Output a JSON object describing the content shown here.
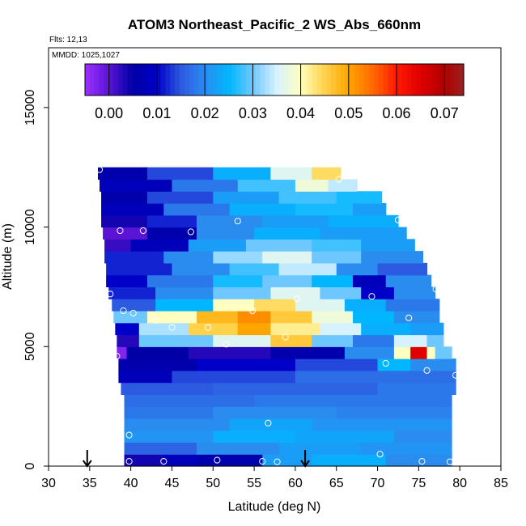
{
  "chart_data": {
    "type": "heatmap",
    "title": "ATOM3 Northeast_Pacific_2 WS_Abs_660nm",
    "flights_label": "Flts: 12,13",
    "mmdd_label": "MMDD: 1025,1027",
    "xlabel": "Latitude (deg N)",
    "ylabel": "Altitude (m)",
    "xlim": [
      30,
      85
    ],
    "ylim": [
      0,
      17500
    ],
    "xticks": [
      "30",
      "35",
      "40",
      "45",
      "50",
      "55",
      "60",
      "65",
      "70",
      "75",
      "80",
      "85"
    ],
    "yticks": [
      "0",
      "5000",
      "10000",
      "15000"
    ],
    "colorbar": {
      "range": [
        -0.005,
        0.074
      ],
      "ticks": [
        "0.00",
        "0.01",
        "0.02",
        "0.03",
        "0.04",
        "0.05",
        "0.06",
        "0.07"
      ],
      "stops": [
        {
          "v": -0.005,
          "c": "#9b30ff"
        },
        {
          "v": 0.0,
          "c": "#5b14d6"
        },
        {
          "v": 0.005,
          "c": "#0000a6"
        },
        {
          "v": 0.01,
          "c": "#0000c8"
        },
        {
          "v": 0.015,
          "c": "#2c5ae0"
        },
        {
          "v": 0.02,
          "c": "#2b8cf0"
        },
        {
          "v": 0.025,
          "c": "#00b6ff"
        },
        {
          "v": 0.03,
          "c": "#6ec8ff"
        },
        {
          "v": 0.035,
          "c": "#d6f2ff"
        },
        {
          "v": 0.04,
          "c": "#ffffc0"
        },
        {
          "v": 0.045,
          "c": "#ffd24a"
        },
        {
          "v": 0.05,
          "c": "#ffa500"
        },
        {
          "v": 0.055,
          "c": "#ff6a00"
        },
        {
          "v": 0.06,
          "c": "#ff1a00"
        },
        {
          "v": 0.065,
          "c": "#e00000"
        },
        {
          "v": 0.07,
          "c": "#b00000"
        },
        {
          "v": 0.074,
          "c": "#9c2020"
        }
      ]
    },
    "bands": [
      {
        "z0": 0,
        "z1": 500,
        "segs": [
          [
            39.2,
            44,
            0.004
          ],
          [
            44,
            48,
            0.008
          ],
          [
            48,
            56,
            0.006
          ],
          [
            56,
            62,
            0.022
          ],
          [
            62,
            71,
            0.024
          ],
          [
            71,
            79,
            0.02
          ]
        ]
      },
      {
        "z0": 500,
        "z1": 1000,
        "segs": [
          [
            39.2,
            48,
            0.016
          ],
          [
            48,
            58,
            0.02
          ],
          [
            58,
            68,
            0.022
          ],
          [
            68,
            79,
            0.021
          ]
        ]
      },
      {
        "z0": 1000,
        "z1": 1500,
        "segs": [
          [
            39.2,
            50,
            0.021
          ],
          [
            50,
            60,
            0.024
          ],
          [
            60,
            72,
            0.023
          ],
          [
            72,
            79,
            0.02
          ]
        ]
      },
      {
        "z0": 1500,
        "z1": 2000,
        "segs": [
          [
            39.2,
            52,
            0.02
          ],
          [
            52,
            62,
            0.023
          ],
          [
            62,
            79,
            0.021
          ]
        ]
      },
      {
        "z0": 2000,
        "z1": 2500,
        "segs": [
          [
            39.2,
            50,
            0.018
          ],
          [
            50,
            65,
            0.02
          ],
          [
            65,
            79,
            0.019
          ]
        ]
      },
      {
        "z0": 2500,
        "z1": 3000,
        "segs": [
          [
            39.2,
            55,
            0.017
          ],
          [
            55,
            79,
            0.018
          ]
        ]
      },
      {
        "z0": 3000,
        "z1": 3500,
        "segs": [
          [
            38.8,
            50,
            0.015
          ],
          [
            50,
            70,
            0.016
          ],
          [
            70,
            79.5,
            0.018
          ]
        ]
      },
      {
        "z0": 3500,
        "z1": 4000,
        "segs": [
          [
            38.5,
            45,
            0.008
          ],
          [
            45,
            60,
            0.014
          ],
          [
            60,
            79.5,
            0.017
          ]
        ]
      },
      {
        "z0": 4000,
        "z1": 4500,
        "segs": [
          [
            38.5,
            48,
            0.006
          ],
          [
            48,
            60,
            0.01
          ],
          [
            60,
            70,
            0.014
          ],
          [
            70,
            74,
            0.025
          ],
          [
            74,
            79.5,
            0.02
          ]
        ]
      },
      {
        "z0": 4500,
        "z1": 5000,
        "segs": [
          [
            38.3,
            39.5,
            -0.003
          ],
          [
            39.5,
            47,
            0.005
          ],
          [
            47,
            57,
            0.003
          ],
          [
            57,
            66,
            0.006
          ],
          [
            66,
            72,
            0.02
          ],
          [
            72,
            74,
            0.04
          ],
          [
            74,
            76,
            0.065
          ],
          [
            76,
            77,
            0.04
          ],
          [
            77,
            79,
            0.03
          ]
        ]
      },
      {
        "z0": 5000,
        "z1": 5500,
        "segs": [
          [
            38.3,
            41,
            0.003
          ],
          [
            41,
            50,
            0.03
          ],
          [
            50,
            57,
            0.036
          ],
          [
            57,
            62,
            0.046
          ],
          [
            62,
            67,
            0.03
          ],
          [
            67,
            72,
            0.018
          ],
          [
            72,
            76,
            0.035
          ],
          [
            76,
            78,
            0.03
          ]
        ]
      },
      {
        "z0": 5500,
        "z1": 6000,
        "segs": [
          [
            38.1,
            41,
            0.01
          ],
          [
            41,
            47,
            0.033
          ],
          [
            47,
            53,
            0.045
          ],
          [
            53,
            57,
            0.05
          ],
          [
            57,
            63,
            0.042
          ],
          [
            63,
            68,
            0.035
          ],
          [
            68,
            74,
            0.024
          ],
          [
            74,
            78,
            0.022
          ]
        ]
      },
      {
        "z0": 6000,
        "z1": 6500,
        "segs": [
          [
            37.9,
            42,
            0.03
          ],
          [
            42,
            48,
            0.04
          ],
          [
            48,
            53,
            0.048
          ],
          [
            53,
            57,
            0.052
          ],
          [
            57,
            62,
            0.046
          ],
          [
            62,
            67,
            0.038
          ],
          [
            67,
            72,
            0.025
          ],
          [
            72,
            77.5,
            0.02
          ]
        ]
      },
      {
        "z0": 6500,
        "z1": 7000,
        "segs": [
          [
            37.7,
            43,
            0.015
          ],
          [
            43,
            50,
            0.025
          ],
          [
            50,
            55,
            0.04
          ],
          [
            55,
            60,
            0.044
          ],
          [
            60,
            66,
            0.036
          ],
          [
            66,
            71,
            0.024
          ],
          [
            71,
            77.5,
            0.018
          ]
        ]
      },
      {
        "z0": 7000,
        "z1": 7500,
        "segs": [
          [
            37.3,
            43,
            0.012
          ],
          [
            43,
            50,
            0.02
          ],
          [
            50,
            57,
            0.03
          ],
          [
            57,
            63,
            0.036
          ],
          [
            63,
            68,
            0.03
          ],
          [
            68,
            72,
            0.01
          ],
          [
            72,
            77,
            0.02
          ]
        ]
      },
      {
        "z0": 7500,
        "z1": 8000,
        "segs": [
          [
            37.0,
            42,
            0.01
          ],
          [
            42,
            50,
            0.018
          ],
          [
            50,
            56,
            0.026
          ],
          [
            56,
            62,
            0.03
          ],
          [
            62,
            67,
            0.025
          ],
          [
            67,
            71,
            0.008
          ],
          [
            71,
            76.5,
            0.02
          ]
        ]
      },
      {
        "z0": 8000,
        "z1": 8500,
        "segs": [
          [
            37.0,
            45,
            0.012
          ],
          [
            45,
            52,
            0.02
          ],
          [
            52,
            58,
            0.028
          ],
          [
            58,
            65,
            0.034
          ],
          [
            65,
            70,
            0.02
          ],
          [
            70,
            76,
            0.015
          ]
        ]
      },
      {
        "z0": 8500,
        "z1": 9000,
        "segs": [
          [
            36.8,
            44,
            0.012
          ],
          [
            44,
            50,
            0.02
          ],
          [
            50,
            56,
            0.032
          ],
          [
            56,
            62,
            0.036
          ],
          [
            62,
            68,
            0.03
          ],
          [
            68,
            75.5,
            0.02
          ]
        ]
      },
      {
        "z0": 9000,
        "z1": 9500,
        "segs": [
          [
            36.8,
            40,
            0.002
          ],
          [
            40,
            47,
            0.008
          ],
          [
            47,
            54,
            0.022
          ],
          [
            54,
            62,
            0.03
          ],
          [
            62,
            68,
            0.028
          ],
          [
            68,
            74.5,
            0.022
          ]
        ]
      },
      {
        "z0": 9500,
        "z1": 10000,
        "segs": [
          [
            36.6,
            42,
            0.0
          ],
          [
            42,
            48,
            0.006
          ],
          [
            48,
            55,
            0.02
          ],
          [
            55,
            63,
            0.024
          ],
          [
            63,
            73.5,
            0.022
          ]
        ]
      },
      {
        "z0": 10000,
        "z1": 10500,
        "segs": [
          [
            36.4,
            42,
            0.004
          ],
          [
            42,
            48,
            0.012
          ],
          [
            48,
            56,
            0.02
          ],
          [
            56,
            64,
            0.022
          ],
          [
            64,
            72.5,
            0.024
          ]
        ]
      },
      {
        "z0": 10500,
        "z1": 11000,
        "segs": [
          [
            36.4,
            44,
            0.008
          ],
          [
            44,
            52,
            0.018
          ],
          [
            52,
            60,
            0.024
          ],
          [
            60,
            67,
            0.026
          ],
          [
            67,
            71,
            0.022
          ]
        ]
      },
      {
        "z0": 11000,
        "z1": 11500,
        "segs": [
          [
            36.4,
            42,
            0.006
          ],
          [
            42,
            50,
            0.014
          ],
          [
            50,
            58,
            0.022
          ],
          [
            58,
            65,
            0.028
          ],
          [
            65,
            70.5,
            0.026
          ]
        ]
      },
      {
        "z0": 11500,
        "z1": 12000,
        "segs": [
          [
            36.2,
            45,
            0.008
          ],
          [
            45,
            53,
            0.018
          ],
          [
            53,
            60,
            0.028
          ],
          [
            60,
            64,
            0.038
          ],
          [
            64,
            67.5,
            0.034
          ]
        ]
      },
      {
        "z0": 12000,
        "z1": 12500,
        "segs": [
          [
            36.0,
            42,
            0.006
          ],
          [
            42,
            50,
            0.014
          ],
          [
            50,
            57,
            0.024
          ],
          [
            57,
            62,
            0.036
          ],
          [
            62,
            65.5,
            0.044
          ]
        ]
      }
    ],
    "samples": [
      {
        "lat": 39.8,
        "alt": 200
      },
      {
        "lat": 44.0,
        "alt": 200
      },
      {
        "lat": 50.5,
        "alt": 250
      },
      {
        "lat": 56.0,
        "alt": 200
      },
      {
        "lat": 57.8,
        "alt": 180
      },
      {
        "lat": 70.3,
        "alt": 500
      },
      {
        "lat": 75.4,
        "alt": 200
      },
      {
        "lat": 78.8,
        "alt": 180
      },
      {
        "lat": 39.8,
        "alt": 1300
      },
      {
        "lat": 56.7,
        "alt": 1800
      },
      {
        "lat": 79.5,
        "alt": 3800
      },
      {
        "lat": 38.3,
        "alt": 4600
      },
      {
        "lat": 71.0,
        "alt": 4300
      },
      {
        "lat": 76.0,
        "alt": 4000
      },
      {
        "lat": 51.6,
        "alt": 5100
      },
      {
        "lat": 45.0,
        "alt": 5800
      },
      {
        "lat": 49.4,
        "alt": 5800
      },
      {
        "lat": 58.8,
        "alt": 5400
      },
      {
        "lat": 43.0,
        "alt": 6100
      },
      {
        "lat": 39.1,
        "alt": 6500
      },
      {
        "lat": 40.3,
        "alt": 6400
      },
      {
        "lat": 54.8,
        "alt": 6500
      },
      {
        "lat": 73.8,
        "alt": 6200
      },
      {
        "lat": 37.5,
        "alt": 7200
      },
      {
        "lat": 60.2,
        "alt": 7000
      },
      {
        "lat": 69.3,
        "alt": 7100
      },
      {
        "lat": 77.1,
        "alt": 7400
      },
      {
        "lat": 38.7,
        "alt": 9850
      },
      {
        "lat": 41.5,
        "alt": 9850
      },
      {
        "lat": 47.3,
        "alt": 9800
      },
      {
        "lat": 53.0,
        "alt": 10250
      },
      {
        "lat": 72.5,
        "alt": 10300
      },
      {
        "lat": 65.3,
        "alt": 12000
      },
      {
        "lat": 36.2,
        "alt": 12400
      }
    ],
    "arrows": [
      34.7,
      61.2
    ]
  }
}
